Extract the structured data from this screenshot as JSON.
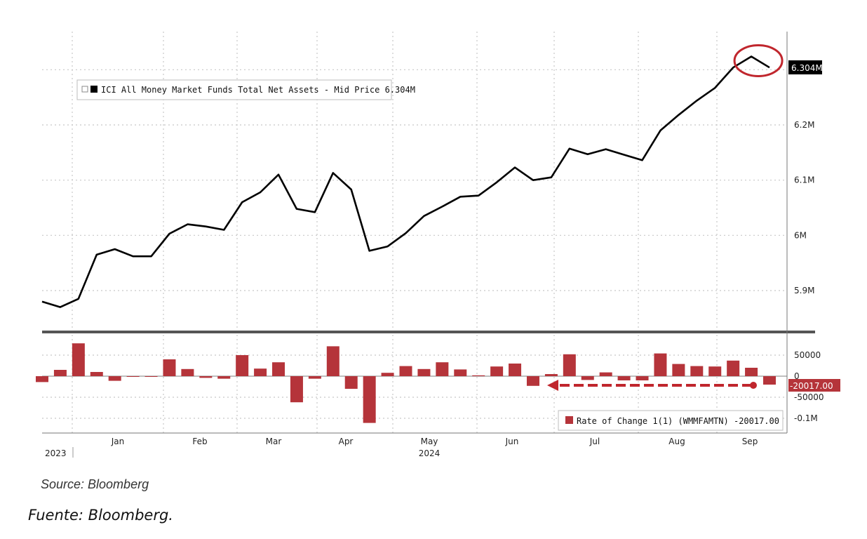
{
  "chart_data": [
    {
      "type": "line",
      "legend": "ICI All Money Market Funds Total Net Assets - Mid Price 6.304M",
      "last_value_label": "6.304M",
      "y_ticks": [
        "5.9M",
        "6M",
        "6.1M",
        "6.2M"
      ],
      "y_tick_values": [
        5.9,
        6.0,
        6.1,
        6.2
      ],
      "ylim": [
        5.8,
        6.36
      ],
      "unit": "millions",
      "values": [
        5.88,
        5.87,
        5.885,
        5.965,
        5.975,
        5.962,
        5.962,
        6.003,
        6.02,
        6.016,
        6.01,
        6.06,
        6.078,
        6.11,
        6.048,
        6.042,
        6.113,
        6.083,
        5.972,
        5.98,
        6.004,
        6.035,
        6.052,
        6.07,
        6.072,
        6.096,
        6.123,
        6.1,
        6.105,
        6.157,
        6.147,
        6.156,
        6.146,
        6.136,
        6.19,
        6.218,
        6.244,
        6.267,
        6.304,
        6.324,
        6.304
      ],
      "line_color": "#000000",
      "highlight_color": "#c0262d"
    },
    {
      "type": "bar",
      "legend": "Rate of Change 1(1) (WMMFAMTN) -20017.00",
      "last_value_label": "-20017.00",
      "y_ticks": [
        "50000",
        "0",
        "-50000",
        "-0.1M"
      ],
      "y_tick_values": [
        50000,
        0,
        -50000,
        -100000
      ],
      "ylim": [
        -115000,
        80000
      ],
      "values": [
        -14000,
        15000,
        78000,
        10000,
        -11000,
        0,
        0,
        40000,
        17000,
        -4000,
        -6000,
        50000,
        18000,
        33000,
        -62000,
        -6000,
        71000,
        -30000,
        -111000,
        8000,
        24000,
        17000,
        33000,
        16000,
        2000,
        23000,
        30000,
        -23000,
        5000,
        52000,
        -9000,
        9000,
        -10000,
        -10000,
        54000,
        29000,
        24000,
        23000,
        37000,
        20000,
        -20017
      ],
      "bar_color": "#b5343a",
      "arrow_color": "#c0262d"
    }
  ],
  "x_axis": {
    "month_ticks": [
      "Jan",
      "Feb",
      "Mar",
      "Apr",
      "May",
      "Jun",
      "Jul",
      "Aug",
      "Sep"
    ],
    "year_labels": [
      "2023",
      "2024"
    ]
  },
  "source_en": "Source: Bloomberg",
  "source_es": "Fuente: Bloomberg."
}
